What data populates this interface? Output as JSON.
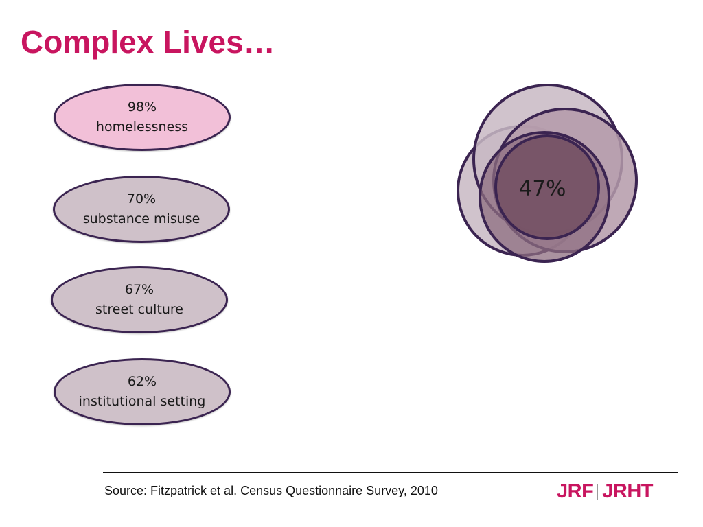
{
  "slide": {
    "title": "Complex Lives…"
  },
  "factors": [
    {
      "percent": "98%",
      "label": "homelessness"
    },
    {
      "percent": "70%",
      "label": "substance misuse"
    },
    {
      "percent": "67%",
      "label": "street culture"
    },
    {
      "percent": "62%",
      "label": "institutional setting"
    }
  ],
  "venn": {
    "overlap_label": "47%"
  },
  "footer": {
    "source": "Source: Fitzpatrick et al. Census Questionnaire Survey, 2010",
    "logo_left": "JRF",
    "logo_right": "JRHT"
  },
  "colors": {
    "title": "#c8155f",
    "highlight_fill": "#f2c0d8",
    "ellipse_fill": "#cfc1c9",
    "outline": "#3b2451",
    "venn_light": "#c8b8c3",
    "venn_mid": "#a88c9b",
    "venn_dark": "#6e4a5c",
    "logo": "#c8155f"
  }
}
